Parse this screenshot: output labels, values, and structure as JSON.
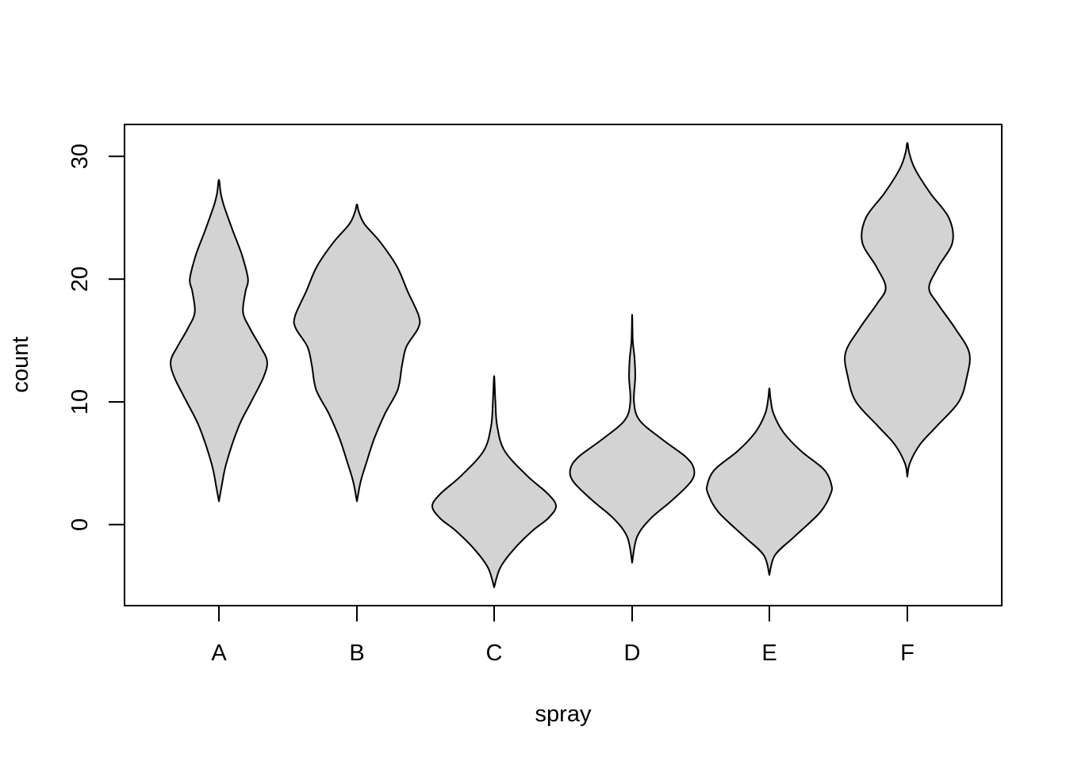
{
  "chart_data": {
    "type": "violin",
    "title": "",
    "xlabel": "spray",
    "ylabel": "count",
    "categories": [
      "A",
      "B",
      "C",
      "D",
      "E",
      "F"
    ],
    "ylim": [
      -6.6,
      32.6
    ],
    "yticks": [
      0,
      10,
      20,
      30
    ],
    "ytick_labels": [
      "0",
      "10",
      "20",
      "30"
    ],
    "fill_color": "#d3d3d3",
    "stroke_color": "#000000",
    "violins": [
      {
        "category": "A",
        "min": 1.9,
        "max": 28.1,
        "profile": [
          [
            1.9,
            0.0
          ],
          [
            3.0,
            0.04
          ],
          [
            5.0,
            0.12
          ],
          [
            8.0,
            0.32
          ],
          [
            10.0,
            0.52
          ],
          [
            12.0,
            0.72
          ],
          [
            13.3,
            0.78
          ],
          [
            14.5,
            0.67
          ],
          [
            16.0,
            0.5
          ],
          [
            17.3,
            0.39
          ],
          [
            19.0,
            0.43
          ],
          [
            20.0,
            0.47
          ],
          [
            22.0,
            0.37
          ],
          [
            24.0,
            0.22
          ],
          [
            26.0,
            0.08
          ],
          [
            27.0,
            0.03
          ],
          [
            28.1,
            0.0
          ]
        ]
      },
      {
        "category": "B",
        "min": 1.9,
        "max": 26.1,
        "profile": [
          [
            1.9,
            0.0
          ],
          [
            3.5,
            0.06
          ],
          [
            5.0,
            0.15
          ],
          [
            7.0,
            0.28
          ],
          [
            9.0,
            0.45
          ],
          [
            11.0,
            0.66
          ],
          [
            13.0,
            0.73
          ],
          [
            14.5,
            0.8
          ],
          [
            16.0,
            0.99
          ],
          [
            17.0,
            1.0
          ],
          [
            19.0,
            0.82
          ],
          [
            21.0,
            0.65
          ],
          [
            23.0,
            0.38
          ],
          [
            24.5,
            0.12
          ],
          [
            25.5,
            0.03
          ],
          [
            26.1,
            0.0
          ]
        ]
      },
      {
        "category": "C",
        "min": -5.1,
        "max": 12.1,
        "profile": [
          [
            -5.1,
            0.0
          ],
          [
            -3.5,
            0.1
          ],
          [
            -2.0,
            0.32
          ],
          [
            -0.5,
            0.62
          ],
          [
            0.5,
            0.87
          ],
          [
            1.5,
            1.0
          ],
          [
            2.5,
            0.87
          ],
          [
            4.0,
            0.53
          ],
          [
            6.0,
            0.17
          ],
          [
            8.0,
            0.05
          ],
          [
            10.0,
            0.02
          ],
          [
            12.1,
            0.0
          ]
        ]
      },
      {
        "category": "D",
        "min": -3.1,
        "max": 17.1,
        "profile": [
          [
            -3.1,
            0.0
          ],
          [
            -1.0,
            0.08
          ],
          [
            0.5,
            0.3
          ],
          [
            2.0,
            0.65
          ],
          [
            3.5,
            0.95
          ],
          [
            4.5,
            1.0
          ],
          [
            5.5,
            0.87
          ],
          [
            7.0,
            0.47
          ],
          [
            8.5,
            0.12
          ],
          [
            10.0,
            0.03
          ],
          [
            12.0,
            0.05
          ],
          [
            13.5,
            0.04
          ],
          [
            15.0,
            0.01
          ],
          [
            17.1,
            0.0
          ]
        ]
      },
      {
        "category": "E",
        "min": -4.1,
        "max": 11.1,
        "profile": [
          [
            -4.1,
            0.0
          ],
          [
            -2.5,
            0.09
          ],
          [
            -1.0,
            0.4
          ],
          [
            1.0,
            0.82
          ],
          [
            2.5,
            0.99
          ],
          [
            3.3,
            1.0
          ],
          [
            4.5,
            0.88
          ],
          [
            6.0,
            0.51
          ],
          [
            7.5,
            0.23
          ],
          [
            9.0,
            0.07
          ],
          [
            10.2,
            0.02
          ],
          [
            11.1,
            0.0
          ]
        ]
      },
      {
        "category": "F",
        "min": 3.9,
        "max": 31.1,
        "profile": [
          [
            3.9,
            0.0
          ],
          [
            5.0,
            0.04
          ],
          [
            6.5,
            0.2
          ],
          [
            8.0,
            0.47
          ],
          [
            10.0,
            0.83
          ],
          [
            12.0,
            0.96
          ],
          [
            14.0,
            1.0
          ],
          [
            16.0,
            0.77
          ],
          [
            18.0,
            0.49
          ],
          [
            19.3,
            0.35
          ],
          [
            21.0,
            0.5
          ],
          [
            23.0,
            0.73
          ],
          [
            25.0,
            0.67
          ],
          [
            27.0,
            0.37
          ],
          [
            29.0,
            0.12
          ],
          [
            30.3,
            0.03
          ],
          [
            31.1,
            0.0
          ]
        ]
      }
    ]
  }
}
